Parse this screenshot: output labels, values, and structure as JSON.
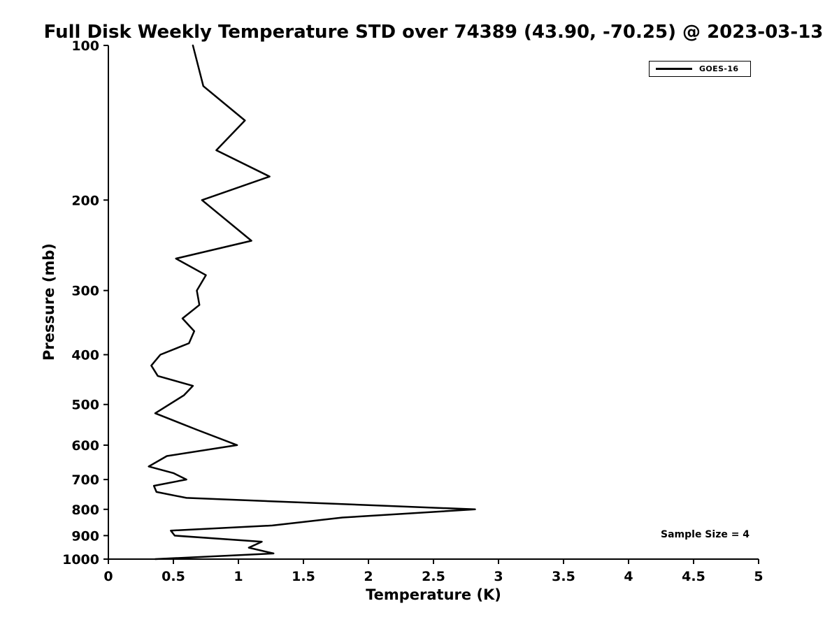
{
  "page": {
    "background": "#ffffff",
    "text_color": "#000000"
  },
  "chart_data": {
    "type": "line",
    "title": "Full Disk Weekly Temperature STD over 74389 (43.90, -70.25) @ 2023-03-13",
    "xlabel": "Temperature (K)",
    "ylabel": "Pressure (mb)",
    "xlim": [
      0,
      5
    ],
    "xtick_values": [
      0,
      0.5,
      1,
      1.5,
      2,
      2.5,
      3,
      3.5,
      4,
      4.5,
      5
    ],
    "xtick_labels": [
      "0",
      "0.5",
      "1",
      "1.5",
      "2",
      "2.5",
      "3",
      "3.5",
      "4",
      "4.5",
      "5"
    ],
    "yscale": "log",
    "y_axis_inverted": true,
    "ylim": [
      100,
      1000
    ],
    "ytick_values": [
      100,
      200,
      300,
      400,
      500,
      600,
      700,
      800,
      900,
      1000
    ],
    "ytick_labels": [
      "100",
      "200",
      "300",
      "400",
      "500",
      "600",
      "700",
      "800",
      "900",
      "1000"
    ],
    "grid": false,
    "line_width": 2.5,
    "legend": {
      "position": "upper right",
      "entries": [
        {
          "label": "GOES-16",
          "color": "#000000"
        }
      ]
    },
    "annotation": {
      "text": "Sample Size = 4",
      "approx_x_data": 4.55,
      "approx_y_data_mb": 900
    },
    "series": [
      {
        "name": "GOES-16",
        "color": "#000000",
        "points": [
          [
            100,
            0.65
          ],
          [
            120,
            0.73
          ],
          [
            140,
            1.05
          ],
          [
            160,
            0.83
          ],
          [
            180,
            1.24
          ],
          [
            200,
            0.72
          ],
          [
            240,
            1.1
          ],
          [
            260,
            0.52
          ],
          [
            280,
            0.75
          ],
          [
            300,
            0.68
          ],
          [
            320,
            0.7
          ],
          [
            340,
            0.57
          ],
          [
            360,
            0.66
          ],
          [
            380,
            0.62
          ],
          [
            400,
            0.4
          ],
          [
            420,
            0.33
          ],
          [
            440,
            0.38
          ],
          [
            460,
            0.65
          ],
          [
            480,
            0.58
          ],
          [
            520,
            0.36
          ],
          [
            560,
            0.68
          ],
          [
            600,
            0.99
          ],
          [
            630,
            0.45
          ],
          [
            660,
            0.31
          ],
          [
            680,
            0.5
          ],
          [
            700,
            0.6
          ],
          [
            720,
            0.35
          ],
          [
            740,
            0.37
          ],
          [
            760,
            0.6
          ],
          [
            800,
            2.82
          ],
          [
            830,
            1.8
          ],
          [
            860,
            1.26
          ],
          [
            880,
            0.48
          ],
          [
            900,
            0.51
          ],
          [
            925,
            1.18
          ],
          [
            950,
            1.08
          ],
          [
            975,
            1.27
          ],
          [
            1000,
            0.36
          ]
        ]
      }
    ]
  }
}
